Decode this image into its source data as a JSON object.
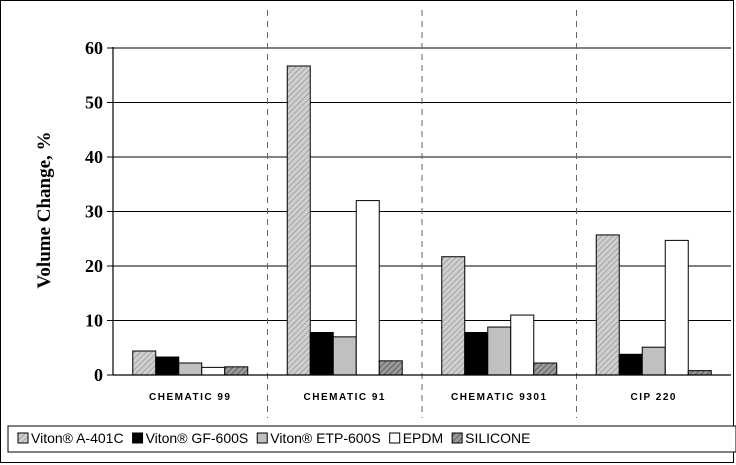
{
  "chart_data": {
    "type": "bar",
    "title": "",
    "xlabel": "",
    "ylabel": "Volume Change, %",
    "ylim": [
      0,
      60
    ],
    "yticks": [
      0,
      10,
      20,
      30,
      40,
      50,
      60
    ],
    "categories": [
      "CHEMATIC 99",
      "CHEMATIC 91",
      "CHEMATIC 9301",
      "CIP 220"
    ],
    "series": [
      {
        "name": "Viton® A-401C",
        "fill": "hatch-light",
        "values": [
          4.4,
          56.7,
          21.7,
          25.7
        ]
      },
      {
        "name": "Viton® GF-600S",
        "fill": "#000000",
        "values": [
          3.3,
          7.8,
          7.8,
          3.8
        ]
      },
      {
        "name": "Viton® ETP-600S",
        "fill": "#c0c0c0",
        "values": [
          2.2,
          7.0,
          8.8,
          5.1
        ]
      },
      {
        "name": "EPDM",
        "fill": "#ffffff",
        "values": [
          1.4,
          32.0,
          11.0,
          24.7
        ]
      },
      {
        "name": "SILICONE",
        "fill": "hatch-dark",
        "values": [
          1.5,
          2.6,
          2.2,
          0.8
        ]
      }
    ],
    "grid": true,
    "category_separators": "dashed",
    "legend_position": "bottom"
  }
}
